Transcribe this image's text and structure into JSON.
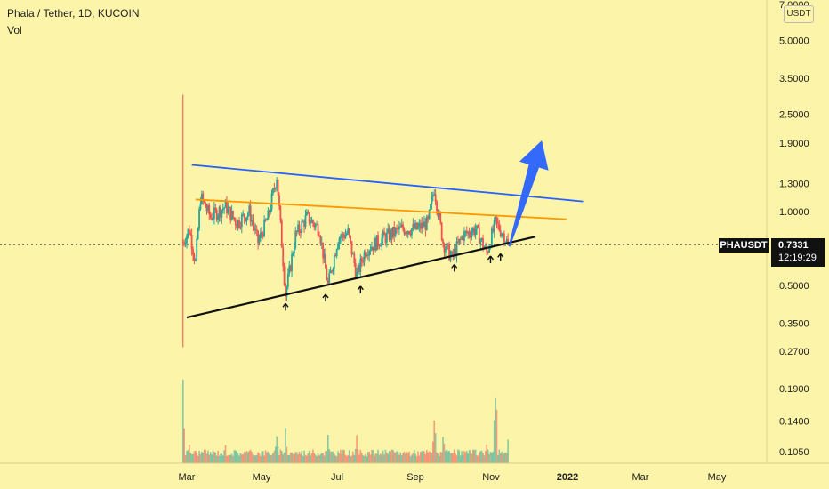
{
  "header": {
    "title": "Phala / Tether, 1D, KUCOIN",
    "subtitle": "Vol"
  },
  "unit_label": "USDT",
  "symbol_badge": "PHAUSDT",
  "last_price": "0.7331",
  "countdown": "12:19:29",
  "colors": {
    "background": "#fcf4a8",
    "up": "#26a69a",
    "down": "#ef5350",
    "support_line": "#111111",
    "resistance_orange": "#ff9800",
    "resistance_blue": "#2962ff",
    "arrow": "#2962ff"
  },
  "chart_data": {
    "type": "candlestick",
    "yscale": "log",
    "ylim": [
      0.095,
      7.0
    ],
    "y_ticks": [
      "7.0000",
      "5.0000",
      "3.5000",
      "2.5000",
      "1.9000",
      "1.3000",
      "1.0000",
      "0.5000",
      "0.3500",
      "0.2700",
      "0.1900",
      "0.1400",
      "0.1050"
    ],
    "x_ticks": [
      "Mar",
      "May",
      "Jul",
      "Sep",
      "Nov",
      "2022",
      "Mar",
      "May"
    ],
    "price_series": [
      [
        "2021-02-26",
        0.75
      ],
      [
        "2021-03-03",
        0.85
      ],
      [
        "2021-03-08",
        0.62
      ],
      [
        "2021-03-12",
        1.15
      ],
      [
        "2021-03-20",
        0.95
      ],
      [
        "2021-04-01",
        1.05
      ],
      [
        "2021-04-10",
        0.9
      ],
      [
        "2021-04-20",
        1.0
      ],
      [
        "2021-04-27",
        0.75
      ],
      [
        "2021-05-05",
        0.95
      ],
      [
        "2021-05-12",
        1.4
      ],
      [
        "2021-05-19",
        0.46
      ],
      [
        "2021-05-27",
        0.8
      ],
      [
        "2021-06-05",
        0.95
      ],
      [
        "2021-06-15",
        0.85
      ],
      [
        "2021-06-22",
        0.5
      ],
      [
        "2021-06-30",
        0.78
      ],
      [
        "2021-07-08",
        0.82
      ],
      [
        "2021-07-15",
        0.55
      ],
      [
        "2021-07-22",
        0.7
      ],
      [
        "2021-08-05",
        0.78
      ],
      [
        "2021-08-20",
        0.85
      ],
      [
        "2021-09-01",
        0.85
      ],
      [
        "2021-09-10",
        0.9
      ],
      [
        "2021-09-15",
        1.25
      ],
      [
        "2021-09-22",
        0.75
      ],
      [
        "2021-09-29",
        0.65
      ],
      [
        "2021-10-08",
        0.8
      ],
      [
        "2021-10-18",
        0.85
      ],
      [
        "2021-10-27",
        0.68
      ],
      [
        "2021-11-03",
        0.9
      ],
      [
        "2021-11-10",
        0.8
      ],
      [
        "2021-11-13",
        0.7331
      ]
    ],
    "volume_profile": [
      [
        "2021-02-26",
        1.0
      ],
      [
        "2021-03-03",
        0.25
      ],
      [
        "2021-04-01",
        0.18
      ],
      [
        "2021-05-12",
        0.3
      ],
      [
        "2021-05-19",
        0.35
      ],
      [
        "2021-06-22",
        0.28
      ],
      [
        "2021-07-15",
        0.25
      ],
      [
        "2021-09-15",
        0.55
      ],
      [
        "2021-09-22",
        0.35
      ],
      [
        "2021-10-27",
        0.3
      ],
      [
        "2021-11-03",
        0.95
      ],
      [
        "2021-11-13",
        0.3
      ]
    ],
    "trendlines": [
      {
        "role": "support",
        "color": "#111111",
        "p1": [
          "2021-03-01",
          0.37
        ],
        "p2": [
          "2021-12-05",
          0.79
        ]
      },
      {
        "role": "resistance-orange",
        "color": "#ff9800",
        "p1": [
          "2021-03-08",
          1.12
        ],
        "p2": [
          "2021-12-30",
          0.93
        ]
      },
      {
        "role": "resistance-blue",
        "color": "#2962ff",
        "p1": [
          "2021-03-05",
          1.55
        ],
        "p2": [
          "2022-01-12",
          1.1
        ]
      }
    ],
    "touch_markers": [
      "2021-05-19",
      "2021-06-20",
      "2021-07-18",
      "2021-10-01",
      "2021-10-30",
      "2021-11-07"
    ],
    "projection_arrow": {
      "from": [
        "2021-11-14",
        0.72
      ],
      "to": [
        "2021-12-10",
        1.95
      ]
    }
  }
}
